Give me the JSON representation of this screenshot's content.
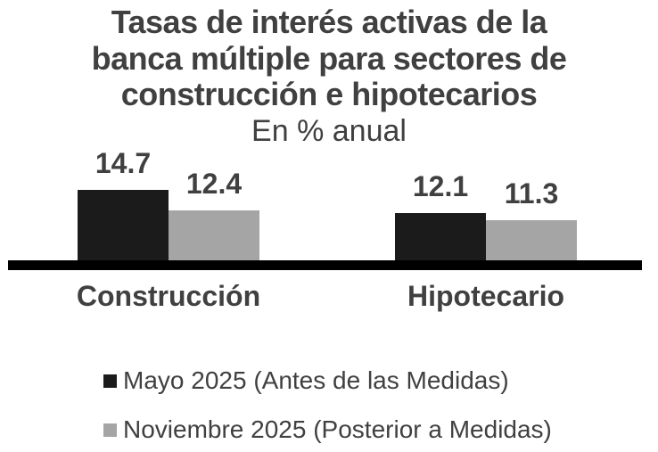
{
  "chart_data": {
    "type": "bar",
    "title_lines": [
      "Tasas de interés activas de la",
      "banca múltiple para sectores de",
      "construcción e hipotecarios"
    ],
    "title": "Tasas de interés activas de la banca múltiple para sectores de construcción e hipotecarios",
    "subtitle": "En % anual",
    "categories": [
      "Construcción",
      "Hipotecario"
    ],
    "series": [
      {
        "name": "Mayo 2025 (Antes de las Medidas)",
        "color": "#1b1b1b",
        "values": [
          14.7,
          12.1
        ]
      },
      {
        "name": "Noviembre 2025 (Posterior a Medidas)",
        "color": "#a5a5a5",
        "values": [
          12.4,
          11.3
        ]
      }
    ],
    "value_labels_shown": true,
    "ylim": [
      6.8,
      16
    ],
    "grid": false,
    "legend_position": "bottom-left",
    "baseline_color": "#000000",
    "text_color": "#404040",
    "background_color": "#ffffff"
  }
}
